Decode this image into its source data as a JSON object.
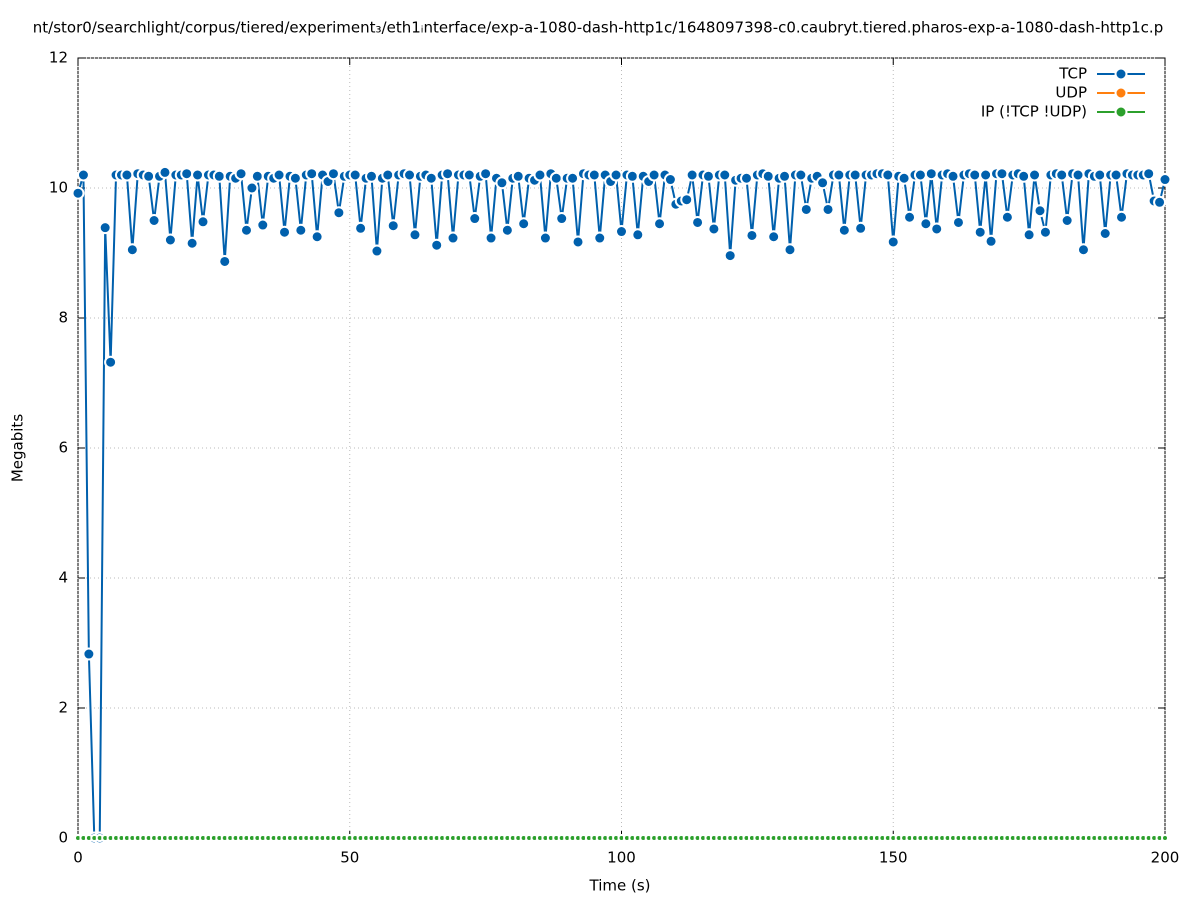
{
  "chart_data": {
    "type": "line",
    "title": "nt/stor0/searchlight/corpus/tiered/experiment₃/eth1ᵢnterface/exp-a-1080-dash-http1c/1648097398-c0.caubryt.tiered.pharos-exp-a-1080-dash-http1c.p",
    "xlabel": "Time (s)",
    "ylabel": "Megabits",
    "xlim": [
      0,
      200
    ],
    "xticks": [
      0,
      50,
      100,
      150,
      200
    ],
    "ylim": [
      0,
      12
    ],
    "yticks": [
      0,
      2,
      4,
      6,
      8,
      10,
      12
    ],
    "grid": true,
    "legend": "top-right",
    "x": [
      0,
      1,
      2,
      3,
      4,
      5,
      6,
      7,
      8,
      9,
      10,
      11,
      12,
      13,
      14,
      15,
      16,
      17,
      18,
      19,
      20,
      21,
      22,
      23,
      24,
      25,
      26,
      27,
      28,
      29,
      30,
      31,
      32,
      33,
      34,
      35,
      36,
      37,
      38,
      39,
      40,
      41,
      42,
      43,
      44,
      45,
      46,
      47,
      48,
      49,
      50,
      51,
      52,
      53,
      54,
      55,
      56,
      57,
      58,
      59,
      60,
      61,
      62,
      63,
      64,
      65,
      66,
      67,
      68,
      69,
      70,
      71,
      72,
      73,
      74,
      75,
      76,
      77,
      78,
      79,
      80,
      81,
      82,
      83,
      84,
      85,
      86,
      87,
      88,
      89,
      90,
      91,
      92,
      93,
      94,
      95,
      96,
      97,
      98,
      99,
      100,
      101,
      102,
      103,
      104,
      105,
      106,
      107,
      108,
      109,
      110,
      111,
      112,
      113,
      114,
      115,
      116,
      117,
      118,
      119,
      120,
      121,
      122,
      123,
      124,
      125,
      126,
      127,
      128,
      129,
      130,
      131,
      132,
      133,
      134,
      135,
      136,
      137,
      138,
      139,
      140,
      141,
      142,
      143,
      144,
      145,
      146,
      147,
      148,
      149,
      150,
      151,
      152,
      153,
      154,
      155,
      156,
      157,
      158,
      159,
      160,
      161,
      162,
      163,
      164,
      165,
      166,
      167,
      168,
      169,
      170,
      171,
      172,
      173,
      174,
      175,
      176,
      177,
      178,
      179,
      180,
      181,
      182,
      183,
      184,
      185,
      186,
      187,
      188,
      189,
      190,
      191,
      192,
      193,
      194,
      195,
      196,
      197,
      198,
      199,
      200
    ],
    "series": [
      {
        "name": "TCP",
        "color": "#0060ad",
        "values": [
          9.92,
          10.2,
          2.83,
          0,
          0,
          9.39,
          7.32,
          10.2,
          10.2,
          10.2,
          9.05,
          10.22,
          10.2,
          10.18,
          9.5,
          10.18,
          10.24,
          9.2,
          10.2,
          10.2,
          10.22,
          9.15,
          10.2,
          9.48,
          10.2,
          10.2,
          10.18,
          8.87,
          10.18,
          10.15,
          10.22,
          9.35,
          10.0,
          10.18,
          9.43,
          10.18,
          10.15,
          10.2,
          9.32,
          10.18,
          10.15,
          9.35,
          10.2,
          10.22,
          9.25,
          10.2,
          10.1,
          10.22,
          9.62,
          10.18,
          10.2,
          10.2,
          9.38,
          10.15,
          10.18,
          9.03,
          10.15,
          10.2,
          9.42,
          10.2,
          10.22,
          10.2,
          9.28,
          10.18,
          10.2,
          10.15,
          9.12,
          10.2,
          10.22,
          9.23,
          10.2,
          10.2,
          10.2,
          9.53,
          10.18,
          10.22,
          9.23,
          10.15,
          10.08,
          9.35,
          10.15,
          10.18,
          9.45,
          10.15,
          10.12,
          10.2,
          9.23,
          10.22,
          10.15,
          9.53,
          10.15,
          10.15,
          9.17,
          10.22,
          10.2,
          10.2,
          9.23,
          10.2,
          10.1,
          10.2,
          9.33,
          10.2,
          10.18,
          9.28,
          10.18,
          10.1,
          10.2,
          9.45,
          10.2,
          10.13,
          9.75,
          9.8,
          9.82,
          10.2,
          9.47,
          10.2,
          10.18,
          9.37,
          10.2,
          10.2,
          8.96,
          10.12,
          10.15,
          10.15,
          9.27,
          10.2,
          10.22,
          10.18,
          9.25,
          10.15,
          10.18,
          9.05,
          10.2,
          10.2,
          9.67,
          10.15,
          10.18,
          10.08,
          9.67,
          10.2,
          10.2,
          9.35,
          10.2,
          10.2,
          9.38,
          10.2,
          10.2,
          10.22,
          10.22,
          10.2,
          9.17,
          10.18,
          10.15,
          9.55,
          10.2,
          10.2,
          9.45,
          10.22,
          9.37,
          10.2,
          10.22,
          10.18,
          9.47,
          10.2,
          10.22,
          10.2,
          9.32,
          10.2,
          9.18,
          10.22,
          10.22,
          9.55,
          10.2,
          10.22,
          10.18,
          9.28,
          10.2,
          9.65,
          9.32,
          10.2,
          10.22,
          10.2,
          9.5,
          10.22,
          10.2,
          9.05,
          10.22,
          10.18,
          10.2,
          9.3,
          10.2,
          10.2,
          9.55,
          10.22,
          10.2,
          10.2,
          10.2,
          10.22,
          9.8,
          9.78,
          10.13
        ]
      },
      {
        "name": "UDP",
        "color": "#ff7f0e",
        "values": [
          0,
          0,
          0,
          0,
          0,
          0,
          0,
          0,
          0,
          0,
          0,
          0,
          0,
          0,
          0,
          0,
          0,
          0,
          0,
          0,
          0,
          0,
          0,
          0,
          0,
          0,
          0,
          0,
          0,
          0,
          0,
          0,
          0,
          0,
          0,
          0,
          0,
          0,
          0,
          0,
          0,
          0,
          0,
          0,
          0,
          0,
          0,
          0,
          0,
          0,
          0,
          0,
          0,
          0,
          0,
          0,
          0,
          0,
          0,
          0,
          0,
          0,
          0,
          0,
          0,
          0,
          0,
          0,
          0,
          0,
          0,
          0,
          0,
          0,
          0,
          0,
          0,
          0,
          0,
          0,
          0,
          0,
          0,
          0,
          0,
          0,
          0,
          0,
          0,
          0,
          0,
          0,
          0,
          0,
          0,
          0,
          0,
          0,
          0,
          0,
          0,
          0,
          0,
          0,
          0,
          0,
          0,
          0,
          0,
          0,
          0,
          0,
          0,
          0,
          0,
          0,
          0,
          0,
          0,
          0,
          0,
          0,
          0,
          0,
          0,
          0,
          0,
          0,
          0,
          0,
          0,
          0,
          0,
          0,
          0,
          0,
          0,
          0,
          0,
          0,
          0,
          0,
          0,
          0,
          0,
          0,
          0,
          0,
          0,
          0,
          0,
          0,
          0,
          0,
          0,
          0,
          0,
          0,
          0,
          0,
          0,
          0,
          0,
          0,
          0,
          0,
          0,
          0,
          0,
          0,
          0,
          0,
          0,
          0,
          0,
          0,
          0,
          0,
          0,
          0,
          0,
          0,
          0,
          0,
          0,
          0,
          0,
          0,
          0,
          0,
          0,
          0,
          0,
          0,
          0,
          0,
          0,
          0,
          0,
          0,
          0
        ]
      },
      {
        "name": "IP (!TCP  !UDP)",
        "color": "#2ca02c",
        "values": [
          0,
          0,
          0,
          0,
          0,
          0,
          0,
          0,
          0,
          0,
          0,
          0,
          0,
          0,
          0,
          0,
          0,
          0,
          0,
          0,
          0,
          0,
          0,
          0,
          0,
          0,
          0,
          0,
          0,
          0,
          0,
          0,
          0,
          0,
          0,
          0,
          0,
          0,
          0,
          0,
          0,
          0,
          0,
          0,
          0,
          0,
          0,
          0,
          0,
          0,
          0,
          0,
          0,
          0,
          0,
          0,
          0,
          0,
          0,
          0,
          0,
          0,
          0,
          0,
          0,
          0,
          0,
          0,
          0,
          0,
          0,
          0,
          0,
          0,
          0,
          0,
          0,
          0,
          0,
          0,
          0,
          0,
          0,
          0,
          0,
          0,
          0,
          0,
          0,
          0,
          0,
          0,
          0,
          0,
          0,
          0,
          0,
          0,
          0,
          0,
          0,
          0,
          0,
          0,
          0,
          0,
          0,
          0,
          0,
          0,
          0,
          0,
          0,
          0,
          0,
          0,
          0,
          0,
          0,
          0,
          0,
          0,
          0,
          0,
          0,
          0,
          0,
          0,
          0,
          0,
          0,
          0,
          0,
          0,
          0,
          0,
          0,
          0,
          0,
          0,
          0,
          0,
          0,
          0,
          0,
          0,
          0,
          0,
          0,
          0,
          0,
          0,
          0,
          0,
          0,
          0,
          0,
          0,
          0,
          0,
          0,
          0,
          0,
          0,
          0,
          0,
          0,
          0,
          0,
          0,
          0,
          0,
          0,
          0,
          0,
          0,
          0,
          0,
          0,
          0,
          0,
          0,
          0,
          0,
          0,
          0,
          0,
          0,
          0,
          0,
          0,
          0,
          0,
          0,
          0,
          0,
          0,
          0,
          0,
          0,
          0
        ]
      }
    ]
  }
}
